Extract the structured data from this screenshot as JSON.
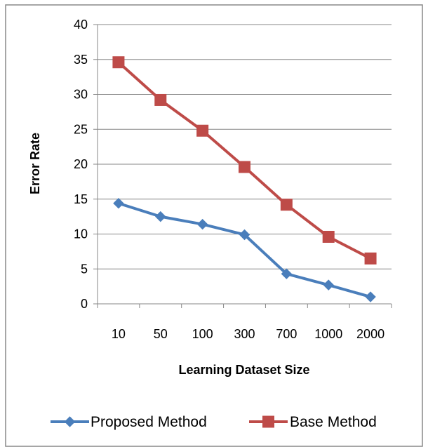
{
  "chart_data": {
    "type": "line",
    "categories": [
      "10",
      "50",
      "100",
      "300",
      "700",
      "1000",
      "2000"
    ],
    "series": [
      {
        "name": "Proposed Method",
        "values": [
          14.4,
          12.5,
          11.4,
          9.9,
          4.3,
          2.7,
          1.0
        ],
        "color": "#4a7ebb",
        "marker": "diamond"
      },
      {
        "name": "Base Method",
        "values": [
          34.6,
          29.2,
          24.8,
          19.6,
          14.2,
          9.6,
          6.5
        ],
        "color": "#be4b48",
        "marker": "square"
      }
    ],
    "title": "",
    "xlabel": "Learning Dataset Size",
    "ylabel": "Error Rate",
    "ylim": [
      0,
      40
    ],
    "yticks": [
      0,
      5,
      10,
      15,
      20,
      25,
      30,
      35,
      40
    ],
    "grid": true,
    "legend_position": "bottom"
  }
}
